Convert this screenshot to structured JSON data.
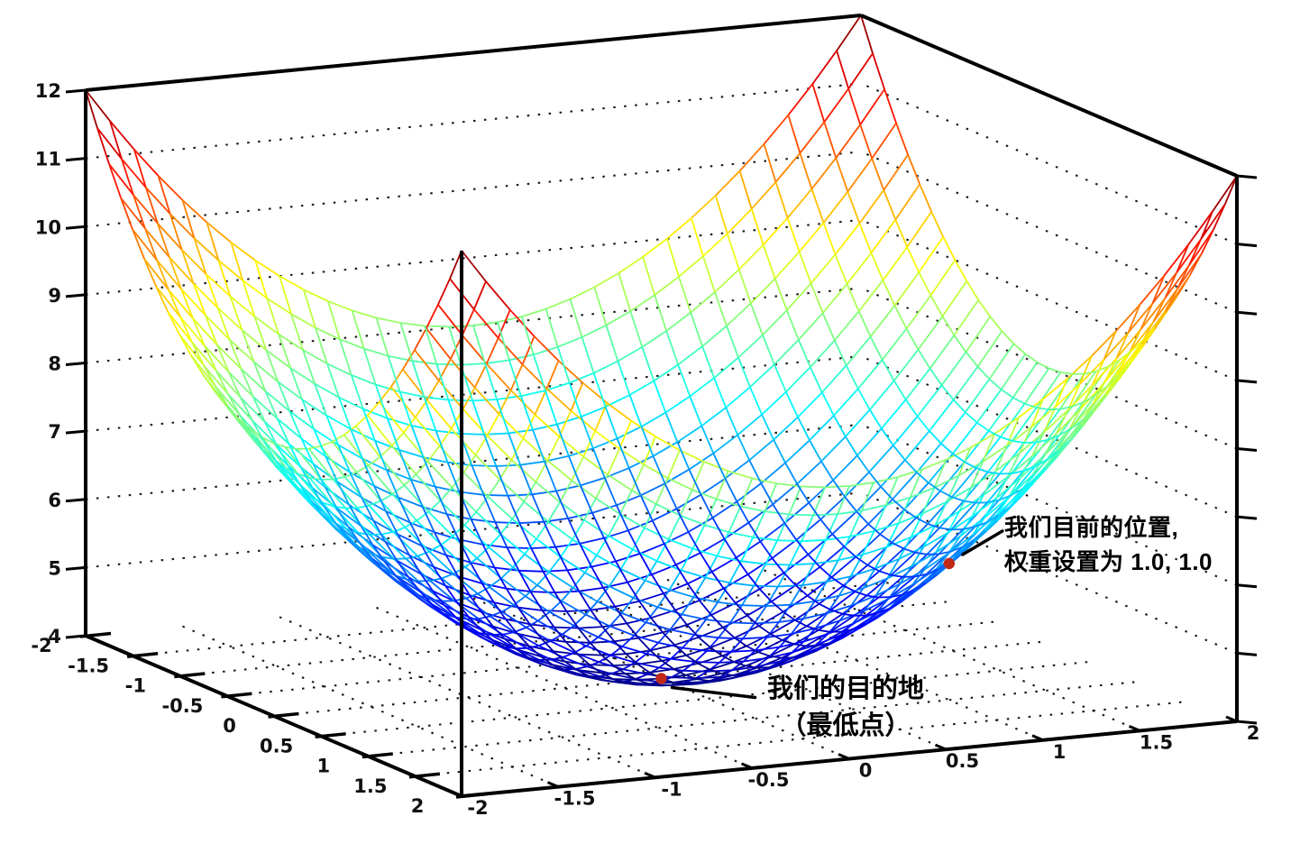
{
  "figure": {
    "background": "#ffffff",
    "axis_color": "#000000",
    "grid_dot_color": "#1a1a1a",
    "point_color": "#c0281a",
    "leader_line_color": "#000000"
  },
  "chart_data": {
    "type": "surface3d-wireframe",
    "title": "",
    "xlabel": "",
    "ylabel": "",
    "zlabel": "",
    "z_formula": "z = x^2 + y^2 + 4 (bowl-shaped error surface)",
    "z_formula_js": "x*x + y*y + 4",
    "x_range": [
      -2,
      2
    ],
    "y_range": [
      -2,
      2
    ],
    "z_range": [
      4,
      12
    ],
    "grid_step": 0.125,
    "colormap": "jet",
    "x_ticks": {
      "values": [
        -2,
        -1.5,
        -1,
        -0.5,
        0,
        0.5,
        1,
        1.5,
        2
      ],
      "labels": [
        "-2",
        "-1.5",
        "-1",
        "-0.5",
        "0",
        "0.5",
        "1",
        "1.5",
        "2"
      ]
    },
    "y_ticks": {
      "values": [
        -2,
        -1.5,
        -1,
        -0.5,
        0,
        0.5,
        1,
        1.5,
        2
      ],
      "labels": [
        "-2",
        "-1.5",
        "-1",
        "-0.5",
        "0",
        "0.5",
        "1",
        "1.5",
        "2"
      ]
    },
    "z_ticks": {
      "values": [
        4,
        5,
        6,
        7,
        8,
        9,
        10,
        11,
        12
      ],
      "labels": [
        "4",
        "5",
        "6",
        "7",
        "8",
        "9",
        "10",
        "11",
        "12"
      ]
    },
    "wall_gridline_z": [
      5,
      6,
      7,
      8,
      9,
      10,
      11
    ],
    "floor_gridline_step": 0.5,
    "points": [
      {
        "x": 1.0,
        "y": 1.0,
        "z": 6.0
      },
      {
        "x": 0.0,
        "y": 0.0,
        "z": 4.0
      }
    ]
  },
  "annotations": [
    {
      "lines": [
        "我们目前的位置,",
        "权重设置为 1.0, 1.0"
      ]
    },
    {
      "lines": [
        "我们的目的地",
        "（最低点）"
      ]
    }
  ]
}
